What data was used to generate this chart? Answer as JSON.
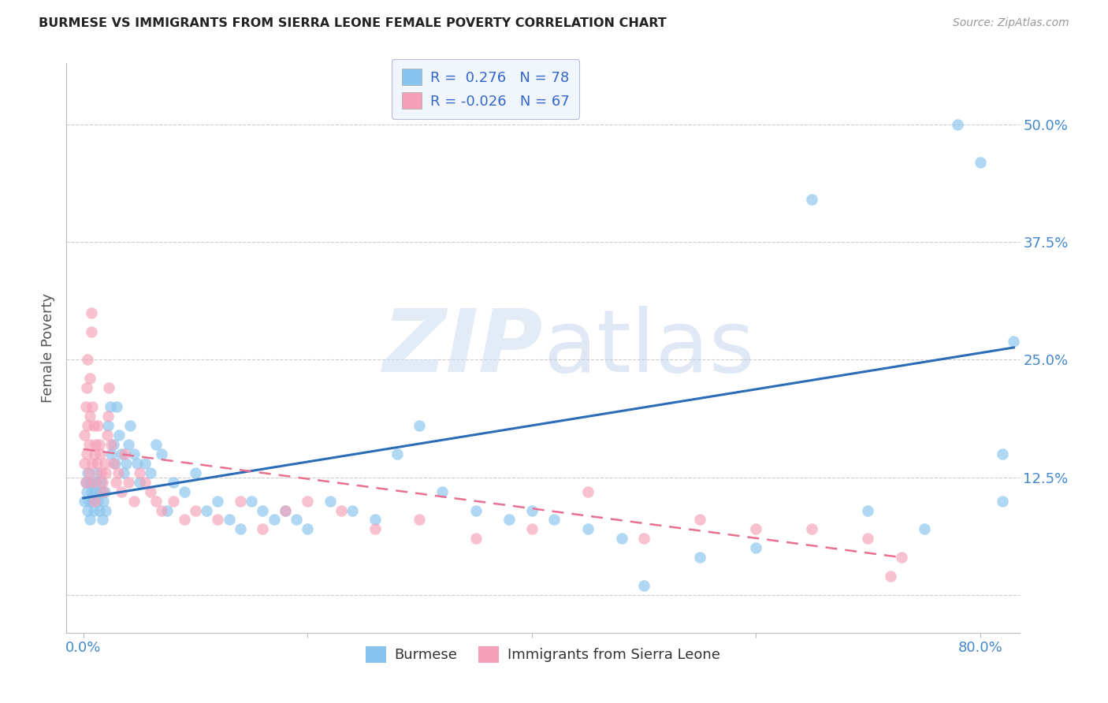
{
  "title": "BURMESE VS IMMIGRANTS FROM SIERRA LEONE FEMALE POVERTY CORRELATION CHART",
  "source": "Source: ZipAtlas.com",
  "ylabel": "Female Poverty",
  "xlim": [
    -0.015,
    0.835
  ],
  "ylim": [
    -0.04,
    0.565
  ],
  "burmese_R": 0.276,
  "burmese_N": 78,
  "sierra_leone_R": -0.026,
  "sierra_leone_N": 67,
  "burmese_color": "#88C4EE",
  "sierra_leone_color": "#F5A0B8",
  "trend_blue": "#2B6CB8",
  "trend_pink": "#E87090",
  "burmese_x": [
    0.001,
    0.002,
    0.003,
    0.004,
    0.004,
    0.005,
    0.006,
    0.006,
    0.007,
    0.008,
    0.009,
    0.01,
    0.011,
    0.012,
    0.013,
    0.014,
    0.015,
    0.016,
    0.017,
    0.018,
    0.019,
    0.02,
    0.022,
    0.024,
    0.025,
    0.027,
    0.028,
    0.03,
    0.032,
    0.034,
    0.036,
    0.038,
    0.04,
    0.042,
    0.045,
    0.048,
    0.05,
    0.055,
    0.06,
    0.065,
    0.07,
    0.075,
    0.08,
    0.09,
    0.1,
    0.11,
    0.12,
    0.13,
    0.14,
    0.15,
    0.16,
    0.17,
    0.18,
    0.19,
    0.2,
    0.22,
    0.24,
    0.26,
    0.28,
    0.3,
    0.32,
    0.35,
    0.38,
    0.4,
    0.42,
    0.45,
    0.48,
    0.5,
    0.55,
    0.6,
    0.65,
    0.7,
    0.75,
    0.78,
    0.8,
    0.82,
    0.82,
    0.83
  ],
  "burmese_y": [
    0.1,
    0.12,
    0.11,
    0.09,
    0.13,
    0.1,
    0.12,
    0.08,
    0.11,
    0.1,
    0.09,
    0.11,
    0.12,
    0.13,
    0.1,
    0.09,
    0.11,
    0.12,
    0.08,
    0.1,
    0.11,
    0.09,
    0.18,
    0.2,
    0.15,
    0.16,
    0.14,
    0.2,
    0.17,
    0.15,
    0.13,
    0.14,
    0.16,
    0.18,
    0.15,
    0.14,
    0.12,
    0.14,
    0.13,
    0.16,
    0.15,
    0.09,
    0.12,
    0.11,
    0.13,
    0.09,
    0.1,
    0.08,
    0.07,
    0.1,
    0.09,
    0.08,
    0.09,
    0.08,
    0.07,
    0.1,
    0.09,
    0.08,
    0.15,
    0.18,
    0.11,
    0.09,
    0.08,
    0.09,
    0.08,
    0.07,
    0.06,
    0.01,
    0.04,
    0.05,
    0.42,
    0.09,
    0.07,
    0.5,
    0.46,
    0.1,
    0.15,
    0.27
  ],
  "sierra_leone_x": [
    0.001,
    0.001,
    0.002,
    0.002,
    0.003,
    0.003,
    0.004,
    0.004,
    0.005,
    0.005,
    0.006,
    0.006,
    0.007,
    0.007,
    0.008,
    0.008,
    0.009,
    0.009,
    0.01,
    0.01,
    0.011,
    0.012,
    0.013,
    0.014,
    0.015,
    0.016,
    0.017,
    0.018,
    0.019,
    0.02,
    0.021,
    0.022,
    0.023,
    0.025,
    0.027,
    0.029,
    0.031,
    0.034,
    0.037,
    0.04,
    0.045,
    0.05,
    0.055,
    0.06,
    0.065,
    0.07,
    0.08,
    0.09,
    0.1,
    0.12,
    0.14,
    0.16,
    0.18,
    0.2,
    0.23,
    0.26,
    0.3,
    0.35,
    0.4,
    0.45,
    0.5,
    0.55,
    0.6,
    0.65,
    0.7,
    0.72,
    0.73
  ],
  "sierra_leone_y": [
    0.14,
    0.17,
    0.12,
    0.2,
    0.15,
    0.22,
    0.18,
    0.25,
    0.13,
    0.16,
    0.19,
    0.23,
    0.28,
    0.3,
    0.14,
    0.2,
    0.12,
    0.18,
    0.1,
    0.15,
    0.16,
    0.14,
    0.18,
    0.16,
    0.15,
    0.13,
    0.12,
    0.11,
    0.14,
    0.13,
    0.17,
    0.19,
    0.22,
    0.16,
    0.14,
    0.12,
    0.13,
    0.11,
    0.15,
    0.12,
    0.1,
    0.13,
    0.12,
    0.11,
    0.1,
    0.09,
    0.1,
    0.08,
    0.09,
    0.08,
    0.1,
    0.07,
    0.09,
    0.1,
    0.09,
    0.07,
    0.08,
    0.06,
    0.07,
    0.11,
    0.06,
    0.08,
    0.07,
    0.07,
    0.06,
    0.02,
    0.04
  ],
  "blue_trend_x0": 0.0,
  "blue_trend_x1": 0.83,
  "blue_trend_y0": 0.103,
  "blue_trend_y1": 0.263,
  "pink_trend_x0": 0.0,
  "pink_trend_x1": 0.73,
  "pink_trend_y0": 0.155,
  "pink_trend_y1": 0.04
}
